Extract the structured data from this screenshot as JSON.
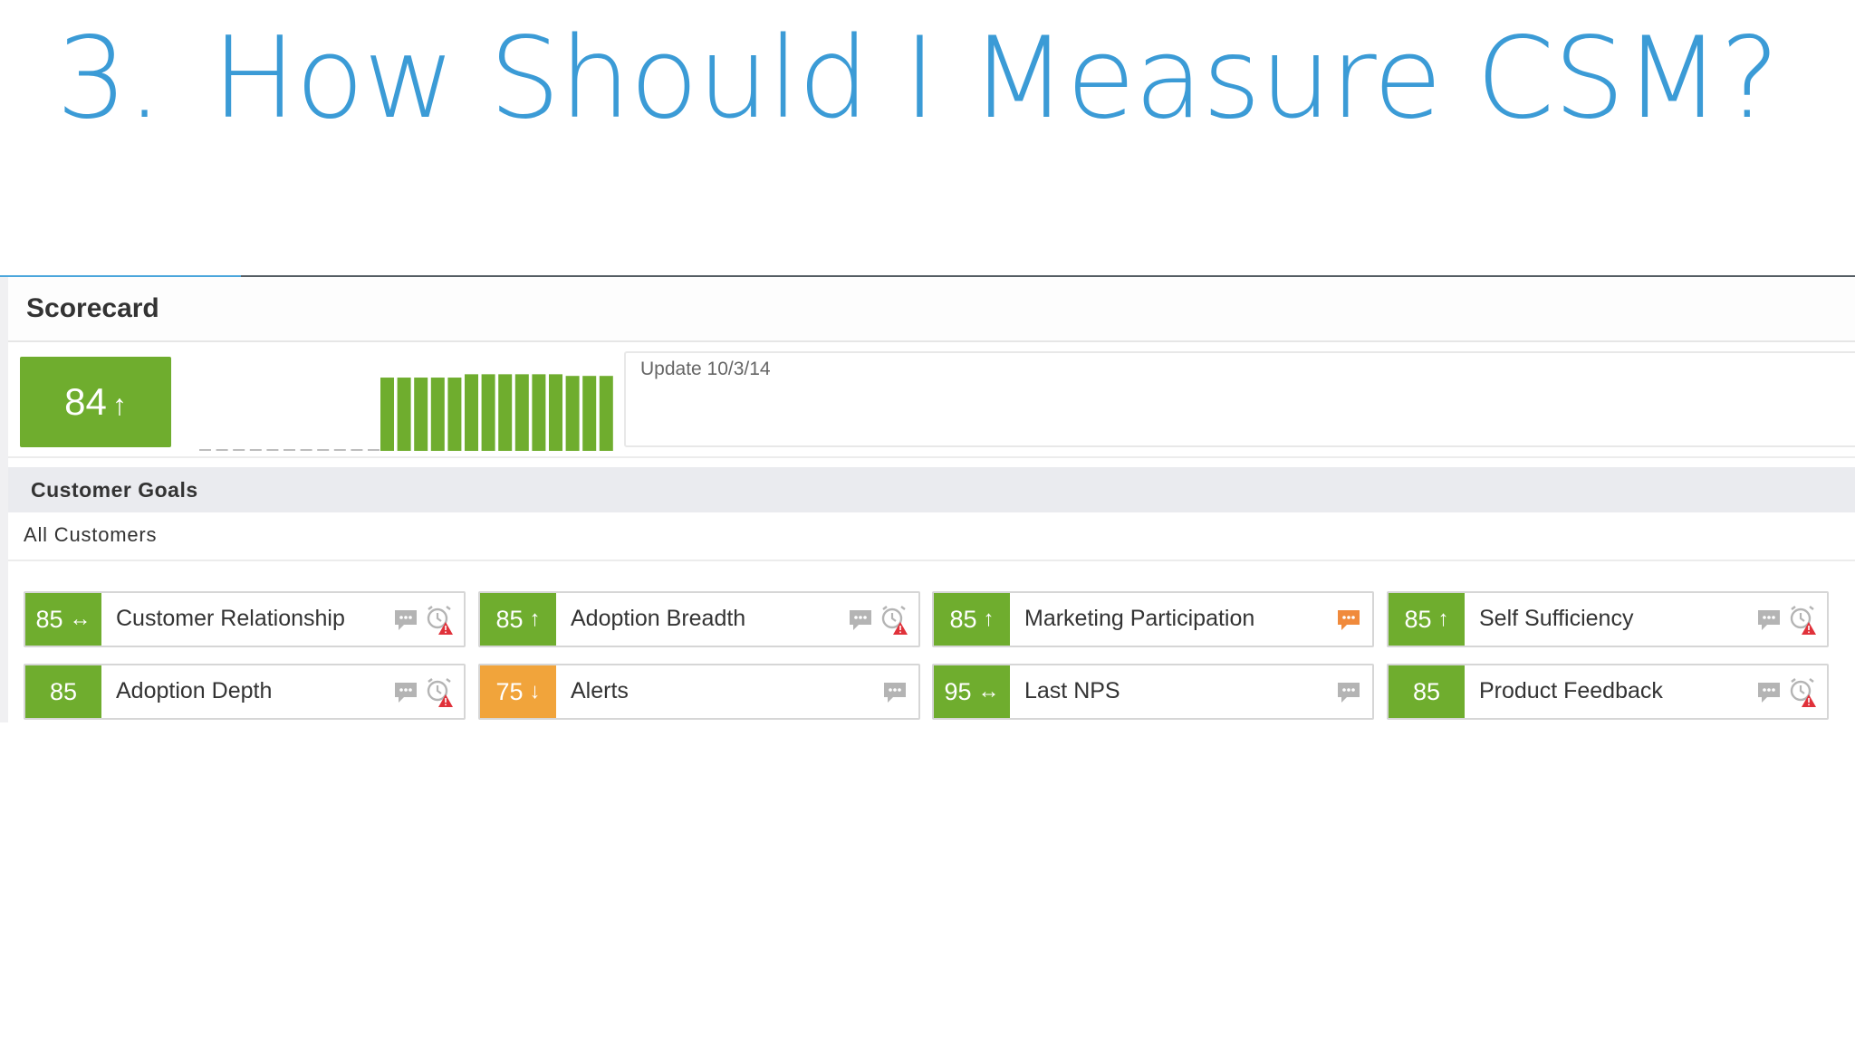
{
  "slide": {
    "number": "3.",
    "title": "How Should I Measure CSM?"
  },
  "scorecard": {
    "title": "Scorecard",
    "overall_score": "84",
    "overall_trend": "up",
    "update_text": "Update 10/3/14",
    "trend_bars": {
      "empty_count": 11,
      "values": [
        0.88,
        0.88,
        0.88,
        0.88,
        0.88,
        0.92,
        0.92,
        0.92,
        0.92,
        0.92,
        0.92,
        0.9,
        0.9,
        0.9
      ]
    }
  },
  "customer_goals": {
    "title": "Customer Goals",
    "filter_label": "All Customers",
    "colors": {
      "green": "#6fad2e",
      "orange": "#f1a43b",
      "comment_active": "#f08a3c",
      "comment_idle": "#b4b4b4",
      "alert": "#e0313a"
    },
    "goals": [
      {
        "score": "85",
        "trend": "flat",
        "trend_glyph": "↔",
        "label": "Customer Relationship",
        "color": "green",
        "comment_active": false,
        "has_alert": true
      },
      {
        "score": "85",
        "trend": "up",
        "trend_glyph": "↑",
        "label": "Adoption Breadth",
        "color": "green",
        "comment_active": false,
        "has_alert": true
      },
      {
        "score": "85",
        "trend": "up",
        "trend_glyph": "↑",
        "label": "Marketing Participation",
        "color": "green",
        "comment_active": true,
        "has_alert": false
      },
      {
        "score": "85",
        "trend": "up",
        "trend_glyph": "↑",
        "label": "Self Sufficiency",
        "color": "green",
        "comment_active": false,
        "has_alert": true
      },
      {
        "score": "85",
        "trend": "none",
        "trend_glyph": "",
        "label": "Adoption Depth",
        "color": "green",
        "comment_active": false,
        "has_alert": true
      },
      {
        "score": "75",
        "trend": "down",
        "trend_glyph": "↓",
        "label": "Alerts",
        "color": "orange",
        "comment_active": false,
        "has_alert": false
      },
      {
        "score": "95",
        "trend": "flat",
        "trend_glyph": "↔",
        "label": "Last NPS",
        "color": "green",
        "comment_active": false,
        "has_alert": false
      },
      {
        "score": "85",
        "trend": "none",
        "trend_glyph": "",
        "label": "Product Feedback",
        "color": "green",
        "comment_active": false,
        "has_alert": true
      }
    ]
  }
}
